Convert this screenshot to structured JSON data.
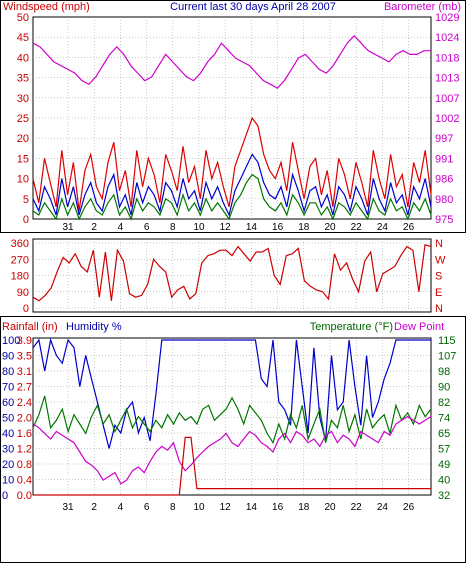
{
  "colors": {
    "frame": "#000000",
    "grid": "#999999",
    "wind_avg": "#0000cc",
    "wind_gust": "#dd0000",
    "wind_other": "#007700",
    "barometer": "#cc00cc",
    "direction": "#cc0000",
    "humidity": "#0000cc",
    "rainfall": "#cc0000",
    "temperature": "#007700",
    "dewpoint": "#cc00cc",
    "label_red": "#cc0000",
    "label_blue": "#0000aa",
    "label_green": "#006600",
    "label_magenta": "#cc00cc"
  },
  "chart_data": [
    {
      "type": "line",
      "title": "Current last 30 days April 28 2007",
      "left_axis_label": "Windspeed (mph)",
      "right_axis_label": "Barometer (mb)",
      "y_left_ticks": [
        "0",
        "5",
        "10",
        "15",
        "20",
        "25",
        "30",
        "35",
        "40",
        "45",
        "50"
      ],
      "y_right_ticks": [
        "975",
        "980",
        "986",
        "991",
        "997",
        "1002",
        "1007",
        "1013",
        "1018",
        "1024",
        "1029"
      ],
      "ylim_left": [
        0,
        50
      ],
      "ylim_right": [
        975,
        1029
      ],
      "x_ticks": [
        "31",
        "2",
        "4",
        "6",
        "8",
        "10",
        "12",
        "14",
        "16",
        "18",
        "20",
        "22",
        "24",
        "26"
      ],
      "grid": true,
      "series": [
        {
          "key": "barometer",
          "axis": "right",
          "values": [
            1022,
            1021,
            1019,
            1017,
            1016,
            1015,
            1014,
            1012,
            1011,
            1013,
            1016,
            1019,
            1021,
            1019,
            1016,
            1014,
            1012,
            1013,
            1016,
            1019,
            1017,
            1015,
            1013,
            1012,
            1014,
            1017,
            1019,
            1022,
            1020,
            1018,
            1017,
            1016,
            1014,
            1012,
            1011,
            1010,
            1012,
            1015,
            1018,
            1019,
            1017,
            1015,
            1014,
            1016,
            1019,
            1022,
            1024,
            1022,
            1020,
            1019,
            1018,
            1017,
            1019,
            1020,
            1019,
            1019,
            1020,
            1020
          ]
        },
        {
          "key": "wind_gust",
          "axis": "left",
          "values": [
            10,
            4,
            15,
            9,
            3,
            17,
            6,
            14,
            2,
            12,
            16,
            8,
            5,
            14,
            19,
            7,
            12,
            3,
            17,
            8,
            15,
            11,
            4,
            16,
            12,
            7,
            18,
            9,
            13,
            5,
            17,
            10,
            14,
            8,
            3,
            13,
            17,
            21,
            25,
            23,
            16,
            12,
            10,
            14,
            7,
            19,
            12,
            5,
            13,
            15,
            6,
            12,
            3,
            15,
            11,
            5,
            14,
            9,
            3,
            17,
            10,
            5,
            16,
            8,
            11,
            3,
            14,
            9,
            17,
            6
          ]
        },
        {
          "key": "wind_avg",
          "axis": "left",
          "values": [
            5,
            2,
            8,
            5,
            1,
            10,
            3,
            8,
            1,
            6,
            9,
            4,
            2,
            8,
            11,
            3,
            6,
            1,
            9,
            4,
            8,
            6,
            2,
            9,
            7,
            3,
            10,
            5,
            7,
            2,
            9,
            5,
            8,
            4,
            1,
            7,
            10,
            13,
            16,
            14,
            9,
            6,
            5,
            8,
            3,
            11,
            7,
            2,
            7,
            8,
            3,
            6,
            1,
            8,
            6,
            2,
            8,
            5,
            1,
            10,
            5,
            2,
            9,
            4,
            6,
            1,
            8,
            5,
            10,
            3
          ]
        },
        {
          "key": "wind_other",
          "axis": "left",
          "values": [
            2,
            1,
            4,
            2,
            0,
            5,
            1,
            4,
            0,
            3,
            5,
            2,
            1,
            4,
            6,
            1,
            3,
            0,
            5,
            2,
            4,
            3,
            1,
            5,
            4,
            1,
            6,
            2,
            4,
            1,
            5,
            2,
            4,
            2,
            0,
            4,
            6,
            9,
            11,
            10,
            5,
            3,
            2,
            4,
            1,
            6,
            4,
            1,
            4,
            4,
            1,
            3,
            0,
            4,
            3,
            1,
            4,
            2,
            0,
            5,
            2,
            1,
            5,
            2,
            3,
            0,
            4,
            2,
            5,
            1
          ]
        }
      ]
    },
    {
      "type": "line",
      "title": "",
      "y_left_ticks": [
        "0",
        "90",
        "180",
        "270",
        "360"
      ],
      "y_right_ticks": [
        "N",
        "E",
        "S",
        "W",
        "N"
      ],
      "ylim_left": [
        0,
        360
      ],
      "series": [
        {
          "key": "direction",
          "axis": "left",
          "values": [
            60,
            40,
            70,
            110,
            200,
            280,
            250,
            300,
            230,
            200,
            320,
            60,
            310,
            40,
            320,
            260,
            80,
            60,
            70,
            130,
            270,
            230,
            200,
            60,
            100,
            120,
            50,
            80,
            250,
            290,
            300,
            320,
            320,
            290,
            340,
            300,
            260,
            310,
            310,
            330,
            180,
            130,
            290,
            300,
            330,
            150,
            120,
            100,
            90,
            50,
            300,
            210,
            250,
            160,
            90,
            260,
            310,
            90,
            190,
            210,
            230,
            290,
            340,
            320,
            90,
            350,
            340
          ]
        }
      ]
    },
    {
      "type": "line",
      "title": "",
      "left_axis_label_1": "Rainfall (in)",
      "left_axis_label_2": "Humidity %",
      "right_axis_label_1": "Temperature (°F)",
      "right_axis_label_2": "Dew Point",
      "y_left_ticks_rain": [
        "0.0",
        "0.4",
        "0.8",
        "1.2",
        "1.6",
        "2.0",
        "2.4",
        "2.7",
        "3.1",
        "3.5",
        "3.9"
      ],
      "y_left_ticks_humidity": [
        "0",
        "10",
        "20",
        "30",
        "40",
        "50",
        "60",
        "70",
        "80",
        "90",
        "100"
      ],
      "y_right_ticks": [
        "32",
        "40",
        "49",
        "57",
        "65",
        "74",
        "82",
        "90",
        "98",
        "107",
        "115"
      ],
      "ylim_left_rain": [
        0,
        3.9
      ],
      "ylim_left_humidity": [
        0,
        100
      ],
      "ylim_right": [
        32,
        115
      ],
      "x_ticks": [
        "31",
        "2",
        "4",
        "6",
        "8",
        "10",
        "12",
        "14",
        "16",
        "18",
        "20",
        "22",
        "24",
        "26"
      ],
      "grid": true,
      "series": [
        {
          "key": "humidity",
          "axis": "humidity",
          "values": [
            95,
            100,
            80,
            100,
            90,
            85,
            100,
            95,
            70,
            90,
            75,
            60,
            45,
            30,
            45,
            40,
            55,
            60,
            40,
            50,
            35,
            65,
            100,
            100,
            100,
            100,
            100,
            100,
            100,
            100,
            100,
            100,
            100,
            100,
            100,
            100,
            100,
            100,
            100,
            75,
            70,
            100,
            60,
            55,
            45,
            100,
            70,
            40,
            95,
            50,
            35,
            90,
            55,
            60,
            100,
            70,
            45,
            90,
            50,
            60,
            75,
            85,
            100,
            100,
            100,
            100,
            100,
            100,
            100
          ]
        },
        {
          "key": "temperature",
          "axis": "right",
          "values": [
            68,
            75,
            85,
            68,
            72,
            78,
            66,
            75,
            70,
            65,
            74,
            80,
            70,
            75,
            66,
            72,
            78,
            68,
            74,
            70,
            66,
            72,
            68,
            75,
            70,
            76,
            72,
            74,
            70,
            78,
            80,
            72,
            75,
            78,
            84,
            78,
            70,
            80,
            76,
            72,
            65,
            60,
            70,
            62,
            75,
            68,
            80,
            62,
            70,
            78,
            60,
            72,
            68,
            80,
            66,
            75,
            62,
            78,
            68,
            72,
            75,
            65,
            80,
            72,
            76,
            70,
            80,
            74,
            78
          ]
        },
        {
          "key": "dewpoint",
          "axis": "right",
          "values": [
            70,
            68,
            65,
            62,
            66,
            64,
            62,
            60,
            55,
            50,
            48,
            45,
            40,
            42,
            44,
            38,
            40,
            45,
            47,
            44,
            50,
            55,
            58,
            56,
            60,
            50,
            45,
            48,
            52,
            55,
            58,
            60,
            62,
            65,
            60,
            58,
            62,
            66,
            64,
            60,
            58,
            55,
            62,
            65,
            60,
            66,
            64,
            60,
            62,
            58,
            64,
            66,
            60,
            64,
            62,
            58,
            66,
            64,
            62,
            60,
            66,
            64,
            70,
            72,
            74,
            72,
            70,
            72,
            74
          ]
        },
        {
          "key": "rainfall",
          "axis": "rain",
          "values": [
            0,
            0,
            0,
            0,
            0,
            0,
            0,
            0,
            0,
            0,
            0,
            0,
            0,
            0,
            0,
            0,
            0,
            0,
            0,
            0,
            0,
            0,
            0,
            0,
            0,
            0,
            1.45,
            1.45,
            0.16,
            0.16,
            0.16,
            0.16,
            0.16,
            0.16,
            0.16,
            0.16,
            0.16,
            0.16,
            0.16,
            0.16,
            0.16,
            0.16,
            0.16,
            0.16,
            0.16,
            0.16,
            0.16,
            0.16,
            0.16,
            0.16,
            0.16,
            0.16,
            0.16,
            0.16,
            0.16,
            0.16,
            0.16,
            0.16,
            0.16,
            0.16,
            0.16,
            0.16,
            0.16,
            0.16,
            0.16,
            0.16,
            0.16,
            0.16,
            0.16
          ]
        }
      ]
    }
  ]
}
